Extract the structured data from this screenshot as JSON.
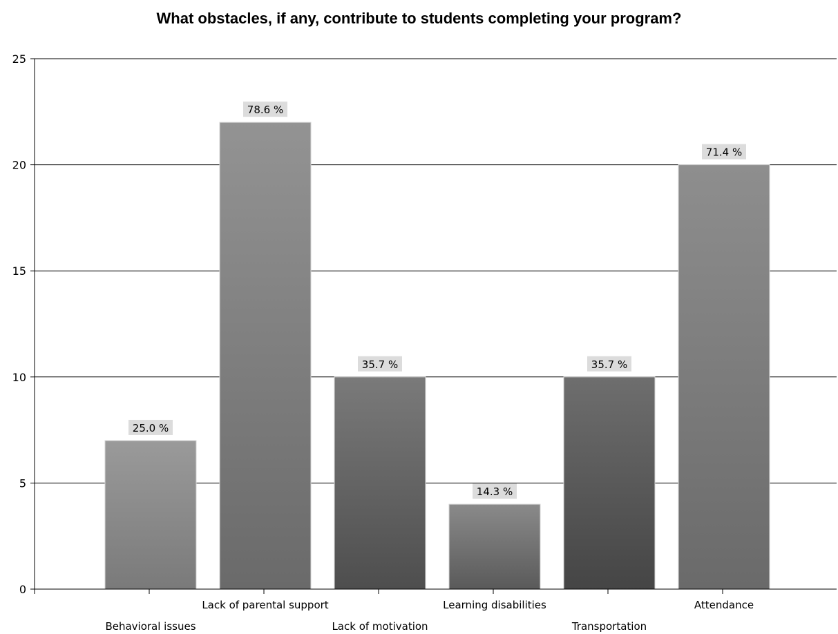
{
  "chart_data": {
    "type": "bar",
    "title": "What obstacles, if any, contribute to students completing your program?",
    "xlabel": "",
    "ylabel": "",
    "categories": [
      "Behavioral issues",
      "Lack of parental support",
      "Lack of motivation",
      "Learning disabilities",
      "Transportation",
      "Attendance"
    ],
    "values": [
      7,
      22,
      10,
      4,
      10,
      20
    ],
    "data_labels": [
      "25.0 %",
      "78.6 %",
      "35.7 %",
      "14.3 %",
      "35.7 %",
      "71.4 %"
    ],
    "ylim": [
      0,
      25
    ],
    "yticks": [
      "0",
      "5",
      "10",
      "15",
      "20",
      "25"
    ],
    "grid": true,
    "legend": "none"
  }
}
